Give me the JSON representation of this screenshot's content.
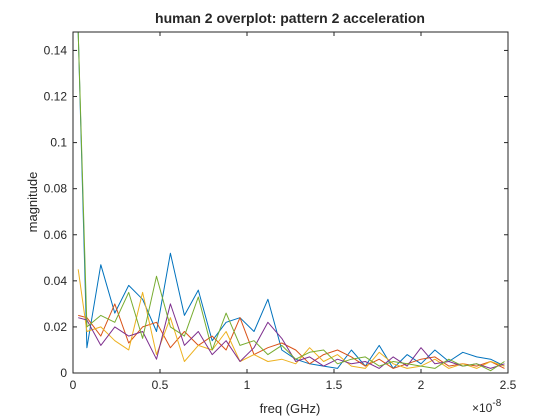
{
  "chart_data": {
    "type": "line",
    "title": "human 2 overplot: pattern 2 acceleration",
    "xlabel": "freq (GHz)",
    "ylabel": "magnitude",
    "x_exponent_label": "×10",
    "x_exponent_power": "-8",
    "xlim": [
      0,
      2.5
    ],
    "ylim": [
      0,
      0.148
    ],
    "xticks": [
      0,
      0.5,
      1,
      1.5,
      2,
      2.5
    ],
    "xtick_labels": [
      "0",
      "0.5",
      "1",
      "1.5",
      "2",
      "2.5"
    ],
    "yticks": [
      0,
      0.02,
      0.04,
      0.06,
      0.08,
      0.1,
      0.12,
      0.14
    ],
    "ytick_labels": [
      "0",
      "0.02",
      "0.04",
      "0.06",
      "0.08",
      "0.1",
      "0.12",
      "0.14"
    ],
    "grid": false,
    "x": [
      0.03,
      0.08,
      0.16,
      0.24,
      0.32,
      0.4,
      0.48,
      0.56,
      0.64,
      0.72,
      0.8,
      0.88,
      0.96,
      1.04,
      1.12,
      1.2,
      1.28,
      1.36,
      1.44,
      1.52,
      1.6,
      1.68,
      1.76,
      1.84,
      1.92,
      2.0,
      2.08,
      2.16,
      2.24,
      2.32,
      2.4,
      2.48
    ],
    "series": [
      {
        "color": "#0072BD",
        "values": [
          0.148,
          0.011,
          0.047,
          0.026,
          0.038,
          0.032,
          0.018,
          0.052,
          0.025,
          0.036,
          0.014,
          0.022,
          0.024,
          0.018,
          0.032,
          0.01,
          0.006,
          0.004,
          0.003,
          0.002,
          0.01,
          0.003,
          0.012,
          0.002,
          0.008,
          0.004,
          0.01,
          0.005,
          0.009,
          0.007,
          0.006,
          0.003
        ]
      },
      {
        "color": "#D95319",
        "values": [
          0.025,
          0.024,
          0.016,
          0.03,
          0.013,
          0.02,
          0.022,
          0.011,
          0.018,
          0.012,
          0.016,
          0.01,
          0.024,
          0.008,
          0.011,
          0.013,
          0.01,
          0.004,
          0.008,
          0.01,
          0.007,
          0.003,
          0.006,
          0.002,
          0.004,
          0.006,
          0.007,
          0.003,
          0.004,
          0.003,
          0.005,
          0.002
        ]
      },
      {
        "color": "#EDB120",
        "values": [
          0.045,
          0.018,
          0.02,
          0.014,
          0.01,
          0.035,
          0.008,
          0.024,
          0.005,
          0.012,
          0.01,
          0.018,
          0.005,
          0.008,
          0.005,
          0.006,
          0.004,
          0.011,
          0.005,
          0.008,
          0.003,
          0.002,
          0.009,
          0.004,
          0.002,
          0.003,
          0.006,
          0.002,
          0.004,
          0.002,
          0.005,
          0.003
        ]
      },
      {
        "color": "#7E2F8E",
        "values": [
          0.024,
          0.023,
          0.012,
          0.02,
          0.016,
          0.018,
          0.006,
          0.03,
          0.012,
          0.018,
          0.008,
          0.014,
          0.005,
          0.011,
          0.022,
          0.015,
          0.005,
          0.007,
          0.003,
          0.006,
          0.004,
          0.005,
          0.002,
          0.007,
          0.003,
          0.011,
          0.004,
          0.005,
          0.003,
          0.004,
          0.002,
          0.004
        ]
      },
      {
        "color": "#77AC30",
        "values": [
          0.148,
          0.02,
          0.025,
          0.022,
          0.035,
          0.015,
          0.042,
          0.02,
          0.016,
          0.033,
          0.01,
          0.026,
          0.012,
          0.014,
          0.008,
          0.012,
          0.006,
          0.009,
          0.01,
          0.004,
          0.006,
          0.007,
          0.003,
          0.005,
          0.004,
          0.003,
          0.002,
          0.006,
          0.003,
          0.004,
          0.001,
          0.005
        ]
      }
    ]
  }
}
